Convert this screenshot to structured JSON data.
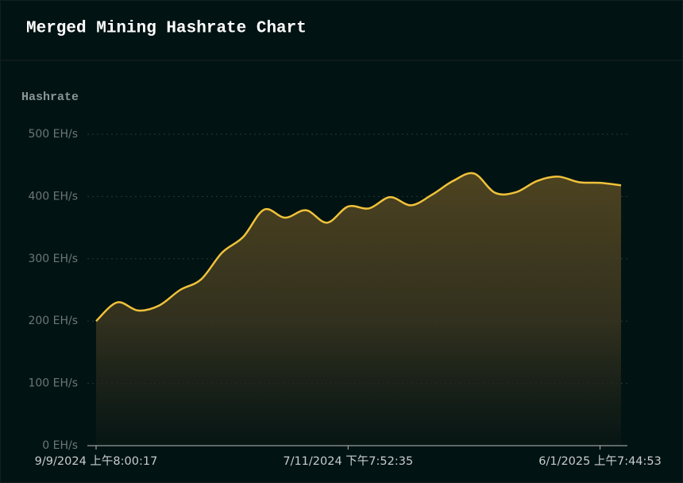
{
  "header": {
    "title": "Merged Mining Hashrate Chart"
  },
  "chart_data": {
    "type": "area",
    "y_label": "Hashrate",
    "categories": [
      "9/9/2024 上午8:00:17",
      null,
      null,
      null,
      null,
      null,
      null,
      null,
      null,
      null,
      null,
      null,
      "7/11/2024 下午7:52:35",
      null,
      null,
      null,
      null,
      null,
      null,
      null,
      null,
      null,
      null,
      null,
      "6/1/2025 上午7:44:53",
      null
    ],
    "series": [
      {
        "name": "Hashrate",
        "color": "#f0c23a",
        "values": [
          200,
          230,
          217,
          225,
          250,
          267,
          310,
          335,
          379,
          366,
          378,
          358,
          384,
          381,
          399,
          386,
          403,
          425,
          437,
          406,
          407,
          425,
          432,
          423,
          422,
          418
        ]
      }
    ],
    "ylim": [
      0,
      500
    ],
    "yticks": [
      {
        "value": 0,
        "label": "0 EH/s"
      },
      {
        "value": 100,
        "label": "100 EH/s"
      },
      {
        "value": 200,
        "label": "200 EH/s"
      },
      {
        "value": 300,
        "label": "300 EH/s"
      },
      {
        "value": 400,
        "label": "400 EH/s"
      },
      {
        "value": 500,
        "label": "500 EH/s"
      }
    ],
    "grid": true
  }
}
